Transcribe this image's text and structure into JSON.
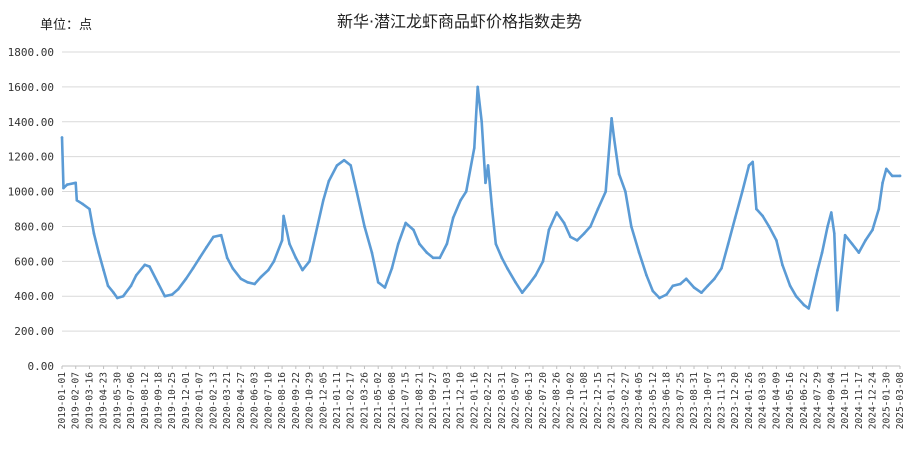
{
  "chart_data": {
    "type": "line",
    "title": "新华·潜江龙虾商品虾价格指数走势",
    "unit_label": "单位：点",
    "ylim": [
      0,
      1800
    ],
    "yticks": [
      "0.00",
      "200.00",
      "400.00",
      "600.00",
      "800.00",
      "1000.00",
      "1200.00",
      "1400.00",
      "1600.00",
      "1800.00"
    ],
    "grid": true,
    "legend": "none",
    "color": "#5b9bd5",
    "xticks": [
      "2019-01-01",
      "2019-02-07",
      "2019-03-16",
      "2019-04-23",
      "2019-05-30",
      "2019-07-06",
      "2019-08-12",
      "2019-09-18",
      "2019-10-25",
      "2019-12-01",
      "2020-01-07",
      "2020-02-13",
      "2020-03-21",
      "2020-04-27",
      "2020-06-03",
      "2020-07-10",
      "2020-08-16",
      "2020-09-22",
      "2020-10-29",
      "2020-12-05",
      "2021-01-11",
      "2021-02-17",
      "2021-03-26",
      "2021-05-02",
      "2021-06-08",
      "2021-07-15",
      "2021-08-21",
      "2021-09-27",
      "2021-11-03",
      "2021-12-10",
      "2022-01-16",
      "2022-02-22",
      "2022-03-31",
      "2022-05-07",
      "2022-06-13",
      "2022-07-20",
      "2022-08-26",
      "2022-10-02",
      "2022-11-08",
      "2022-12-15",
      "2023-01-21",
      "2023-02-27",
      "2023-04-05",
      "2023-05-12",
      "2023-06-18",
      "2023-07-25",
      "2023-08-31",
      "2023-10-07",
      "2023-11-13",
      "2023-12-20",
      "2024-01-26",
      "2024-03-03",
      "2024-04-09",
      "2024-05-16",
      "2024-06-22",
      "2024-07-29",
      "2024-09-04",
      "2024-10-11",
      "2024-11-17",
      "2024-12-24",
      "2025-01-30",
      "2025-03-08"
    ],
    "x": [
      "2019-01-01",
      "2019-01-05",
      "2019-01-15",
      "2019-02-07",
      "2019-02-10",
      "2019-02-25",
      "2019-03-16",
      "2019-03-28",
      "2019-04-10",
      "2019-04-23",
      "2019-05-05",
      "2019-05-20",
      "2019-05-30",
      "2019-06-15",
      "2019-07-06",
      "2019-07-20",
      "2019-08-12",
      "2019-08-25",
      "2019-09-18",
      "2019-10-05",
      "2019-10-25",
      "2019-11-10",
      "2019-12-01",
      "2019-12-20",
      "2020-01-07",
      "2020-01-25",
      "2020-02-13",
      "2020-03-05",
      "2020-03-21",
      "2020-04-05",
      "2020-04-27",
      "2020-05-15",
      "2020-06-03",
      "2020-06-20",
      "2020-07-10",
      "2020-07-25",
      "2020-08-16",
      "2020-08-20",
      "2020-09-05",
      "2020-09-22",
      "2020-10-10",
      "2020-10-29",
      "2020-11-15",
      "2020-12-05",
      "2020-12-20",
      "2021-01-11",
      "2021-01-30",
      "2021-02-17",
      "2021-03-05",
      "2021-03-26",
      "2021-04-15",
      "2021-05-02",
      "2021-05-20",
      "2021-06-08",
      "2021-06-25",
      "2021-07-15",
      "2021-08-05",
      "2021-08-21",
      "2021-09-10",
      "2021-09-27",
      "2021-10-15",
      "2021-11-03",
      "2021-11-20",
      "2021-12-10",
      "2021-12-25",
      "2022-01-16",
      "2022-01-25",
      "2022-02-05",
      "2022-02-15",
      "2022-02-22",
      "2022-03-05",
      "2022-03-15",
      "2022-03-31",
      "2022-04-15",
      "2022-05-07",
      "2022-05-25",
      "2022-06-13",
      "2022-06-30",
      "2022-07-20",
      "2022-08-05",
      "2022-08-26",
      "2022-09-15",
      "2022-10-02",
      "2022-10-20",
      "2022-11-08",
      "2022-11-25",
      "2022-12-15",
      "2023-01-05",
      "2023-01-21",
      "2023-01-28",
      "2023-02-10",
      "2023-02-27",
      "2023-03-15",
      "2023-04-05",
      "2023-04-25",
      "2023-05-12",
      "2023-05-30",
      "2023-06-18",
      "2023-07-05",
      "2023-07-25",
      "2023-08-10",
      "2023-08-31",
      "2023-09-20",
      "2023-10-07",
      "2023-10-25",
      "2023-11-13",
      "2023-12-01",
      "2023-12-20",
      "2024-01-08",
      "2024-01-26",
      "2024-02-05",
      "2024-02-15",
      "2024-03-03",
      "2024-03-20",
      "2024-04-09",
      "2024-04-25",
      "2024-05-16",
      "2024-06-01",
      "2024-06-22",
      "2024-07-05",
      "2024-07-29",
      "2024-08-10",
      "2024-08-25",
      "2024-09-04",
      "2024-09-12",
      "2024-09-20",
      "2024-10-11",
      "2024-10-30",
      "2024-11-17",
      "2024-12-05",
      "2024-12-24",
      "2025-01-10",
      "2025-01-20",
      "2025-01-30",
      "2025-02-15",
      "2025-03-08"
    ],
    "values": [
      1310,
      1020,
      1040,
      1050,
      950,
      930,
      900,
      760,
      650,
      550,
      460,
      420,
      390,
      400,
      460,
      520,
      580,
      570,
      470,
      400,
      410,
      440,
      500,
      560,
      620,
      680,
      740,
      750,
      620,
      560,
      500,
      480,
      470,
      510,
      550,
      600,
      720,
      860,
      700,
      620,
      550,
      600,
      760,
      950,
      1060,
      1150,
      1180,
      1150,
      1000,
      800,
      650,
      480,
      450,
      560,
      700,
      820,
      780,
      700,
      650,
      620,
      620,
      700,
      850,
      950,
      1000,
      1250,
      1600,
      1400,
      1050,
      1150,
      900,
      700,
      620,
      560,
      480,
      420,
      470,
      520,
      600,
      780,
      880,
      820,
      740,
      720,
      760,
      800,
      900,
      1000,
      1420,
      1300,
      1100,
      1000,
      800,
      650,
      520,
      430,
      390,
      410,
      460,
      470,
      500,
      450,
      420,
      460,
      500,
      560,
      700,
      850,
      1000,
      1150,
      1170,
      900,
      860,
      800,
      720,
      580,
      460,
      400,
      350,
      330,
      550,
      650,
      800,
      880,
      760,
      320,
      750,
      700,
      650,
      720,
      780,
      900,
      1050,
      1130,
      1090,
      1090
    ]
  }
}
